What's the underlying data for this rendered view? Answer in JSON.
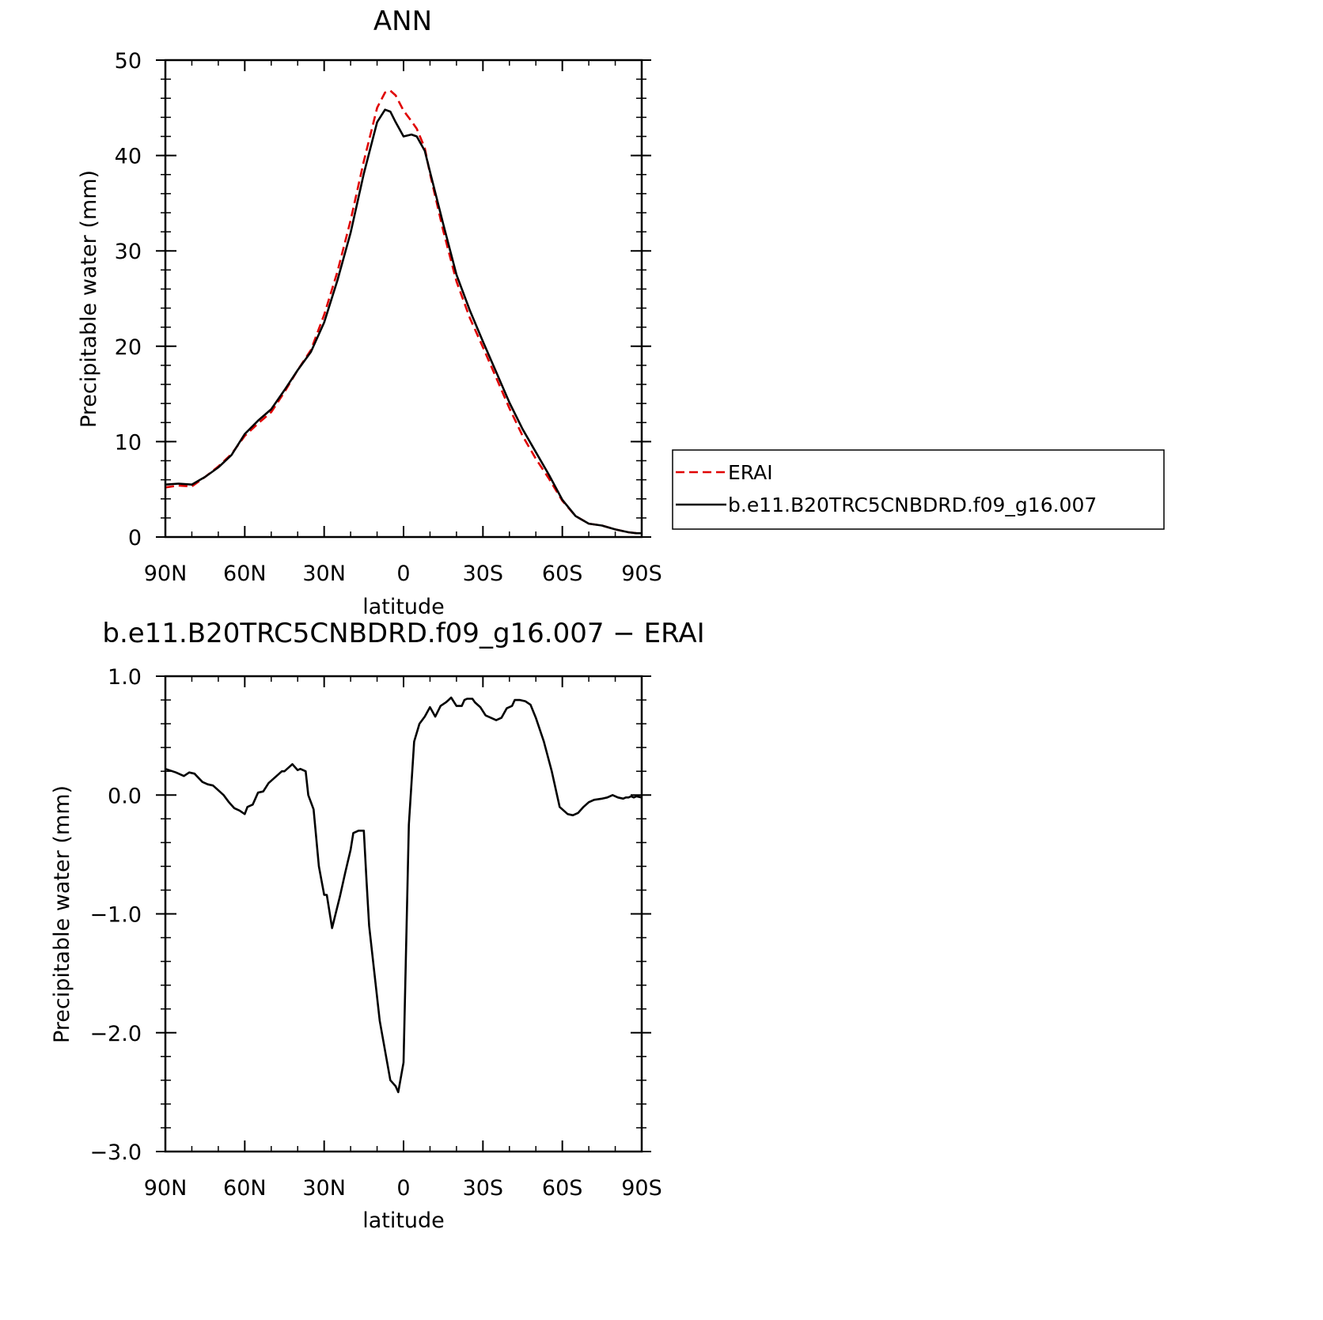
{
  "colors": {
    "erai": "#e00000",
    "model": "#000000",
    "axis": "#000000"
  },
  "chart_data": [
    {
      "type": "line",
      "title": "ANN",
      "xlabel": "latitude",
      "ylabel": "Precipitable water (mm)",
      "xlim": [
        90,
        -90
      ],
      "ylim": [
        0,
        50
      ],
      "xticks": [
        90,
        60,
        30,
        0,
        -30,
        -60,
        -90
      ],
      "xtick_labels": [
        "90N",
        "60N",
        "30N",
        "0",
        "30S",
        "60S",
        "90S"
      ],
      "yticks": [
        0,
        10,
        20,
        30,
        40,
        50
      ],
      "ytick_labels": [
        "0",
        "10",
        "20",
        "30",
        "40",
        "50"
      ],
      "legend": {
        "placement": "right",
        "entries": [
          "ERAI",
          "b.e11.B20TRC5CNBDRD.f09_g16.007"
        ]
      },
      "series": [
        {
          "name": "ERAI",
          "style": "dashed",
          "x": [
            90,
            85,
            80,
            75,
            70,
            65,
            60,
            55,
            50,
            45,
            40,
            35,
            30,
            25,
            20,
            15,
            10,
            7,
            5,
            3,
            0,
            -3,
            -5,
            -8,
            -10,
            -15,
            -20,
            -25,
            -30,
            -35,
            -40,
            -45,
            -50,
            -55,
            -60,
            -65,
            -70,
            -75,
            -80,
            -85,
            -88,
            -90
          ],
          "y": [
            5.2,
            5.4,
            5.3,
            6.3,
            7.4,
            8.7,
            10.6,
            11.9,
            13.1,
            15.2,
            17.5,
            19.6,
            23.3,
            27.8,
            33.2,
            39.4,
            45.0,
            46.6,
            46.8,
            46.3,
            44.7,
            43.6,
            42.8,
            40.8,
            38.1,
            32.1,
            26.8,
            23.0,
            19.9,
            16.7,
            13.5,
            10.6,
            8.2,
            6.1,
            3.8,
            2.2,
            1.4,
            1.2,
            0.8,
            0.5,
            0.4,
            0.4
          ]
        },
        {
          "name": "b.e11.B20TRC5CNBDRD.f09_g16.007",
          "style": "solid",
          "x": [
            90,
            85,
            80,
            75,
            70,
            65,
            60,
            55,
            50,
            45,
            40,
            35,
            30,
            25,
            20,
            15,
            10,
            7,
            5,
            3,
            0,
            -3,
            -5,
            -8,
            -10,
            -15,
            -20,
            -25,
            -30,
            -35,
            -40,
            -45,
            -50,
            -55,
            -60,
            -65,
            -70,
            -75,
            -80,
            -85,
            -88,
            -90
          ],
          "y": [
            5.5,
            5.6,
            5.5,
            6.3,
            7.3,
            8.6,
            10.8,
            12.2,
            13.4,
            15.4,
            17.5,
            19.4,
            22.5,
            26.9,
            31.9,
            38.1,
            43.5,
            44.8,
            44.6,
            43.5,
            42.0,
            42.2,
            42.0,
            40.5,
            38.3,
            32.8,
            27.5,
            23.8,
            20.5,
            17.3,
            14.1,
            11.3,
            8.9,
            6.5,
            3.9,
            2.2,
            1.4,
            1.2,
            0.8,
            0.5,
            0.4,
            0.4
          ]
        }
      ]
    },
    {
      "type": "line",
      "title": "b.e11.B20TRC5CNBDRD.f09_g16.007 − ERAI",
      "xlabel": "latitude",
      "ylabel": "Precipitable water (mm)",
      "xlim": [
        90,
        -90
      ],
      "ylim": [
        -3.0,
        1.0
      ],
      "xticks": [
        90,
        60,
        30,
        0,
        -30,
        -60,
        -90
      ],
      "xtick_labels": [
        "90N",
        "60N",
        "30N",
        "0",
        "30S",
        "60S",
        "90S"
      ],
      "yticks": [
        1.0,
        0.0,
        -1.0,
        -2.0,
        -3.0
      ],
      "ytick_labels": [
        "1.0",
        "0.0",
        "−1.0",
        "−2.0",
        "−3.0"
      ],
      "series": [
        {
          "style": "solid",
          "x": [
            90,
            86,
            83,
            81,
            79,
            76,
            74,
            72,
            70,
            68,
            66,
            64,
            62,
            60,
            59,
            57,
            55,
            53,
            51,
            49,
            48,
            46,
            45,
            43,
            42,
            40,
            39,
            37,
            36,
            34,
            32,
            30,
            29,
            27,
            26,
            24,
            22,
            20,
            19,
            17,
            15,
            14,
            13,
            11,
            9,
            7,
            5,
            3,
            2,
            0,
            -2,
            -4,
            -6,
            -8,
            -10,
            -12,
            -14,
            -16,
            -17,
            -18,
            -20,
            -22,
            -23,
            -24,
            -26,
            -27,
            -29,
            -31,
            -33,
            -35,
            -37,
            -39,
            -41,
            -42,
            -44,
            -46,
            -48,
            -50,
            -53,
            -56,
            -59,
            -62,
            -64,
            -66,
            -68,
            -70,
            -72,
            -75,
            -77,
            -79,
            -81,
            -83,
            -84,
            -85,
            -86,
            -87,
            -88,
            -90
          ],
          "y": [
            0.22,
            0.19,
            0.16,
            0.19,
            0.18,
            0.11,
            0.09,
            0.08,
            0.04,
            0.0,
            -0.06,
            -0.11,
            -0.13,
            -0.16,
            -0.1,
            -0.08,
            0.02,
            0.03,
            0.1,
            0.14,
            0.16,
            0.2,
            0.2,
            0.24,
            0.26,
            0.21,
            0.22,
            0.2,
            0.0,
            -0.12,
            -0.6,
            -0.84,
            -0.84,
            -1.12,
            -1.03,
            -0.85,
            -0.65,
            -0.46,
            -0.32,
            -0.3,
            -0.3,
            -0.72,
            -1.1,
            -1.5,
            -1.9,
            -2.15,
            -2.4,
            -2.45,
            -2.5,
            -2.25,
            -0.25,
            0.45,
            0.6,
            0.66,
            0.74,
            0.66,
            0.75,
            0.78,
            0.8,
            0.82,
            0.75,
            0.75,
            0.8,
            0.81,
            0.81,
            0.78,
            0.74,
            0.67,
            0.65,
            0.63,
            0.65,
            0.73,
            0.75,
            0.8,
            0.8,
            0.79,
            0.76,
            0.65,
            0.45,
            0.2,
            -0.1,
            -0.16,
            -0.17,
            -0.15,
            -0.1,
            -0.06,
            -0.04,
            -0.03,
            -0.02,
            0.0,
            -0.02,
            -0.03,
            -0.02,
            -0.02,
            -0.01,
            -0.02,
            -0.01,
            -0.02
          ]
        }
      ]
    }
  ]
}
